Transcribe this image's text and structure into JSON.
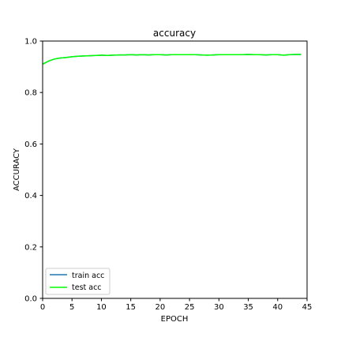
{
  "chart_data": {
    "type": "line",
    "title": "accuracy",
    "xlabel": "EPOCH",
    "ylabel": "ACCURACY",
    "xlim": [
      0,
      45
    ],
    "ylim": [
      0.0,
      1.0
    ],
    "xticks": [
      "0",
      "5",
      "10",
      "15",
      "20",
      "25",
      "30",
      "35",
      "40",
      "45"
    ],
    "yticks": [
      "0.0",
      "0.2",
      "0.4",
      "0.6",
      "0.8",
      "1.0"
    ],
    "grid": false,
    "legend_position": "lower-left",
    "x": [
      0,
      1,
      2,
      3,
      4,
      5,
      6,
      7,
      8,
      9,
      10,
      11,
      12,
      13,
      14,
      15,
      16,
      17,
      18,
      19,
      20,
      21,
      22,
      23,
      24,
      25,
      26,
      27,
      28,
      29,
      30,
      31,
      32,
      33,
      34,
      35,
      36,
      37,
      38,
      39,
      40,
      41,
      42,
      43,
      44
    ],
    "series": [
      {
        "name": "train acc",
        "color": "#1f77b4",
        "values": [
          0.91,
          0.922,
          0.93,
          0.934,
          0.936,
          0.939,
          0.941,
          0.942,
          0.943,
          0.944,
          0.945,
          0.944,
          0.945,
          0.946,
          0.946,
          0.947,
          0.946,
          0.947,
          0.946,
          0.947,
          0.947,
          0.946,
          0.947,
          0.947,
          0.947,
          0.947,
          0.947,
          0.946,
          0.945,
          0.946,
          0.947,
          0.947,
          0.947,
          0.947,
          0.947,
          0.948,
          0.947,
          0.947,
          0.946,
          0.947,
          0.947,
          0.945,
          0.947,
          0.948,
          0.948
        ]
      },
      {
        "name": "test acc",
        "color": "#00ff00",
        "values": [
          0.91,
          0.922,
          0.93,
          0.934,
          0.936,
          0.939,
          0.941,
          0.942,
          0.943,
          0.944,
          0.945,
          0.944,
          0.945,
          0.946,
          0.946,
          0.947,
          0.946,
          0.947,
          0.946,
          0.947,
          0.947,
          0.946,
          0.947,
          0.947,
          0.947,
          0.947,
          0.947,
          0.946,
          0.945,
          0.946,
          0.947,
          0.947,
          0.947,
          0.947,
          0.947,
          0.948,
          0.947,
          0.947,
          0.946,
          0.947,
          0.947,
          0.945,
          0.947,
          0.948,
          0.948
        ]
      }
    ]
  }
}
